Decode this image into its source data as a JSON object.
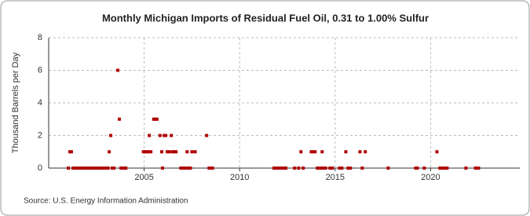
{
  "chart_data": {
    "type": "scatter",
    "title": "Monthly Michigan Imports of Residual Fuel Oil, 0.31 to 1.00% Sulfur",
    "y_label": "Thousand Barrels per Day",
    "source": "Source: U.S. Energy Information Administration",
    "color": "#b00000",
    "xlim": [
      2000,
      2024.67
    ],
    "xticks": [
      2005,
      2010,
      2015,
      2020
    ],
    "ylim": [
      0,
      8
    ],
    "yticks": [
      0,
      2,
      4,
      6,
      8
    ],
    "grid": true,
    "x": [
      2001.03,
      2001.11,
      2001.19,
      2001.28,
      2001.36,
      2001.44,
      2001.53,
      2001.61,
      2001.69,
      2001.78,
      2001.86,
      2001.94,
      2002.03,
      2002.11,
      2002.19,
      2002.28,
      2002.36,
      2002.44,
      2002.53,
      2002.61,
      2002.69,
      2002.78,
      2002.86,
      2002.94,
      2003.03,
      2003.11,
      2003.17,
      2003.25,
      2003.33,
      2003.42,
      2003.62,
      2003.7,
      2003.79,
      2003.87,
      2003.95,
      2004.04,
      2004.96,
      2005.04,
      2005.12,
      2005.21,
      2005.27,
      2005.35,
      2005.5,
      2005.58,
      2005.67,
      2005.83,
      2005.92,
      2005.96,
      2006.05,
      2006.13,
      2006.21,
      2006.33,
      2006.42,
      2006.5,
      2006.58,
      2006.67,
      2006.92,
      2007.0,
      2007.08,
      2007.17,
      2007.25,
      2007.33,
      2007.42,
      2007.5,
      2007.67,
      2008.27,
      2008.4,
      2008.5,
      2008.58,
      2011.8,
      2011.88,
      2011.96,
      2012.05,
      2012.13,
      2012.21,
      2012.3,
      2012.42,
      2012.88,
      2013.09,
      2013.21,
      2013.33,
      2013.75,
      2013.83,
      2013.95,
      2014.07,
      2014.15,
      2014.24,
      2014.32,
      2014.4,
      2014.5,
      2014.73,
      2014.86,
      2015.23,
      2015.35,
      2015.56,
      2015.68,
      2015.8,
      2016.3,
      2016.42,
      2016.58,
      2017.78,
      2019.22,
      2019.3,
      2019.67,
      2020.33,
      2020.49,
      2020.61,
      2020.74,
      2020.86,
      2021.85,
      2022.35,
      2022.51
    ],
    "values": [
      0,
      1,
      1,
      0,
      0,
      0,
      0,
      0,
      0,
      0,
      0,
      0,
      0,
      0,
      0,
      0,
      0,
      0,
      0,
      0,
      0,
      0,
      0,
      0,
      0,
      0,
      1,
      2,
      0,
      0,
      6,
      3,
      0,
      0,
      0,
      0,
      1,
      1,
      1,
      1,
      2,
      1,
      3,
      3,
      3,
      2,
      1,
      0,
      2,
      2,
      1,
      1,
      2,
      1,
      1,
      1,
      0,
      0,
      0,
      0,
      1,
      0,
      0,
      1,
      1,
      2,
      0,
      0,
      0,
      0,
      0,
      0,
      0,
      0,
      0,
      0,
      0,
      0,
      0,
      1,
      0,
      1,
      1,
      1,
      0,
      0,
      0,
      1,
      0,
      0,
      0,
      0,
      0,
      0,
      1,
      0,
      0,
      1,
      0,
      1,
      0,
      0,
      0,
      0,
      1,
      0,
      0,
      0,
      0,
      0,
      0,
      0
    ]
  }
}
